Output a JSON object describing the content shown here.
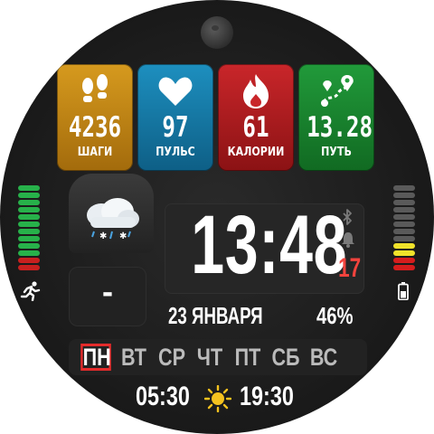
{
  "tiles": {
    "steps": {
      "value": "4236",
      "label": "ШАГИ",
      "icon": "footprints-icon",
      "color": "#d69a1e"
    },
    "pulse": {
      "value": "97",
      "label": "ПУЛЬС",
      "icon": "heart-icon",
      "color": "#1d8fbf"
    },
    "calories": {
      "value": "61",
      "label": "КАЛОРИИ",
      "icon": "flame-icon",
      "color": "#c9262a"
    },
    "distance": {
      "value": "13.28",
      "label": "ПУТЬ",
      "icon": "route-icon",
      "color": "#219a3a"
    }
  },
  "weather": {
    "icon": "cloudy-snow-rain-icon",
    "value": "-"
  },
  "clock": {
    "time": "13:48",
    "seconds": "17",
    "status_icons": [
      "bluetooth-icon",
      "bell-icon"
    ]
  },
  "date": "23 ЯНВАРЯ",
  "battery_percent": "46%",
  "left_gauge": {
    "icon": "running-icon",
    "filled_green": 6,
    "filled_red": 2,
    "total": 12
  },
  "right_gauge": {
    "icon": "battery-icon",
    "filled_yellow": 2,
    "filled_red": 2,
    "total": 12
  },
  "weekdays": [
    "ПН",
    "ВТ",
    "СР",
    "ЧТ",
    "ПТ",
    "СБ",
    "ВС"
  ],
  "active_weekday": 0,
  "sun": {
    "sunrise": "05:30",
    "sunset": "19:30",
    "icon": "sun-icon"
  },
  "colors": {
    "accent_red": "#e52b2b",
    "seconds": "#f2433d"
  }
}
